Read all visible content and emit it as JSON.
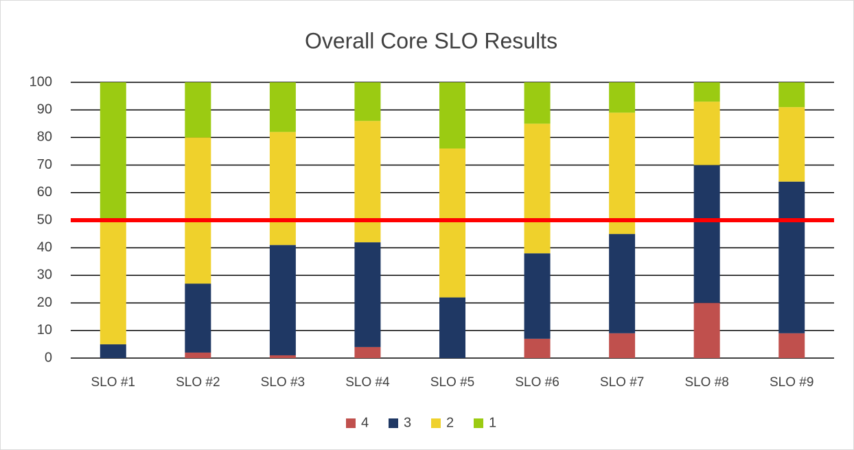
{
  "chart_data": {
    "type": "stacked_bar",
    "title": "Overall Core SLO Results",
    "categories": [
      "SLO #1",
      "SLO #2",
      "SLO #3",
      "SLO #4",
      "SLO #5",
      "SLO #6",
      "SLO #7",
      "SLO #8",
      "SLO #9"
    ],
    "series": [
      {
        "name": "4",
        "color": "#c0504d",
        "values": [
          0,
          2,
          1,
          4,
          0,
          7,
          9,
          20,
          9
        ]
      },
      {
        "name": "3",
        "color": "#1f3864",
        "values": [
          5,
          25,
          40,
          38,
          22,
          31,
          36,
          50,
          55
        ]
      },
      {
        "name": "2",
        "color": "#efd12c",
        "values": [
          45,
          53,
          41,
          44,
          54,
          47,
          44,
          23,
          27
        ]
      },
      {
        "name": "1",
        "color": "#9bcb12",
        "values": [
          50,
          20,
          18,
          14,
          24,
          15,
          11,
          7,
          9
        ]
      }
    ],
    "ylim": [
      0,
      100
    ],
    "yticks": [
      0,
      10,
      20,
      30,
      40,
      50,
      60,
      70,
      80,
      90,
      100
    ],
    "grid": true,
    "reference_line": {
      "value": 50,
      "color": "#ff0000"
    },
    "legend": "bottom"
  }
}
